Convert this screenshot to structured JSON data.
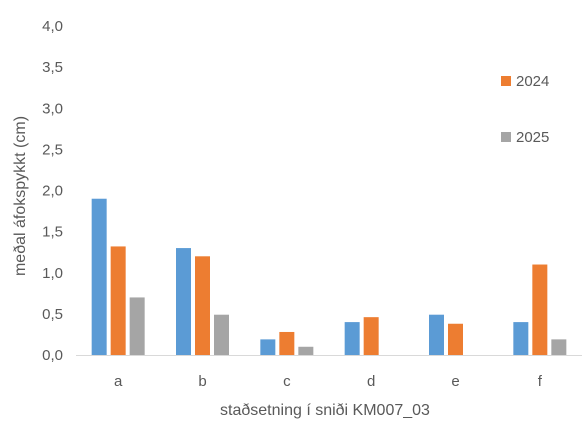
{
  "chart_data": {
    "type": "bar",
    "categories": [
      "a",
      "b",
      "c",
      "d",
      "e",
      "f"
    ],
    "series": [
      {
        "values": [
          1.9,
          1.3,
          0.19,
          0.4,
          0.49,
          0.4
        ],
        "color": "#5b9bd5"
      },
      {
        "name": "2024",
        "values": [
          1.32,
          1.2,
          0.28,
          0.46,
          0.38,
          1.1
        ],
        "color": "#ed7d31"
      },
      {
        "name": "2025",
        "values": [
          0.7,
          0.49,
          0.1,
          null,
          null,
          0.19
        ],
        "color": "#a5a5a5"
      }
    ],
    "title": "",
    "xlabel": "staðsetning í sniði KM007_03",
    "ylabel": "meðal áfokspykkt (cm)",
    "ylim": [
      0,
      4.0
    ],
    "yticks": [
      "0,0",
      "0,5",
      "1,0",
      "1,5",
      "2,0",
      "2,5",
      "3,0",
      "3,5",
      "4,0"
    ],
    "grid": false,
    "legend": "right"
  }
}
